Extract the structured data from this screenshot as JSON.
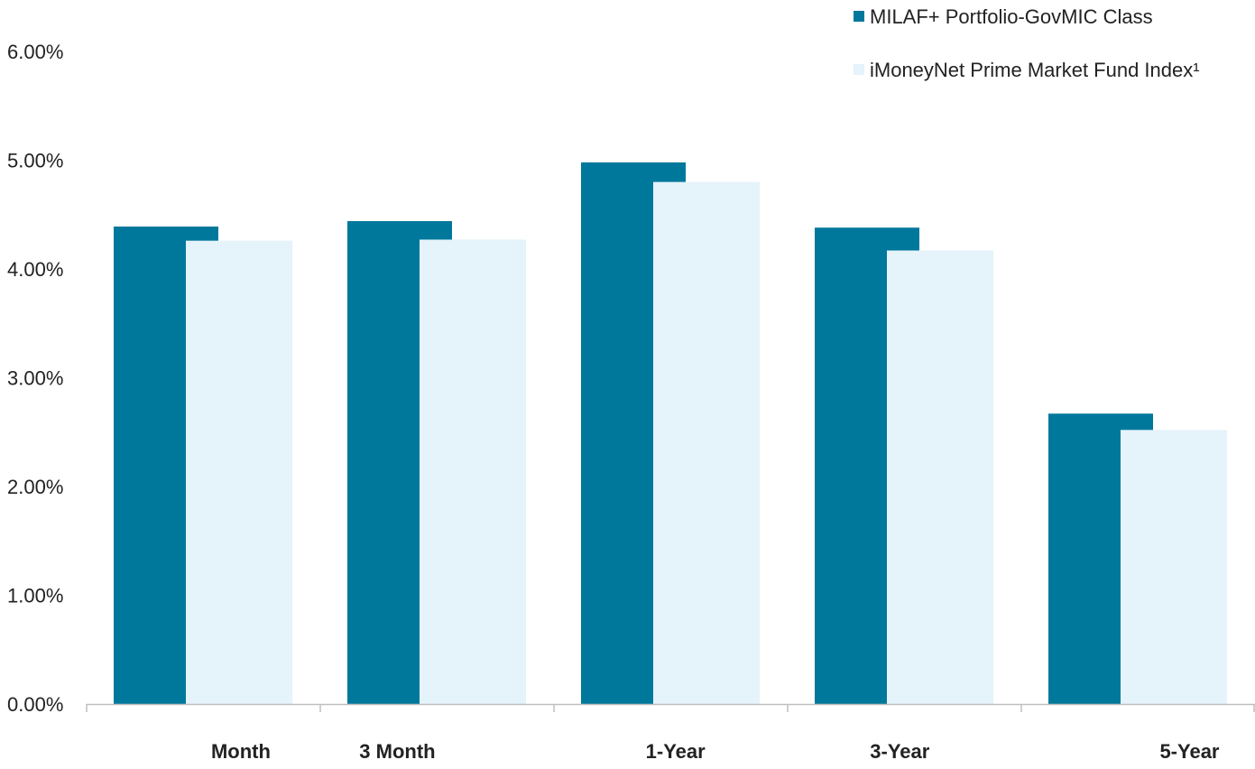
{
  "colors": {
    "series_primary": "#00789C",
    "series_secondary": "#E5F3FA",
    "axis": "#BFBFBF",
    "text": "#222222"
  },
  "chart_data": {
    "type": "bar",
    "categories": [
      "Month",
      "3 Month",
      "1-Year",
      "3-Year",
      "5-Year"
    ],
    "series": [
      {
        "name": "MILAF+ Portfolio-GovMIC Class",
        "color": "#00789C",
        "values": [
          4.39,
          4.44,
          4.98,
          4.38,
          2.67
        ]
      },
      {
        "name": "iMoneyNet Prime Market Fund Index¹",
        "color": "#E5F3FA",
        "values": [
          4.26,
          4.27,
          4.8,
          4.17,
          2.52
        ]
      }
    ],
    "y_tick_labels": [
      "0.00%",
      "1.00%",
      "2.00%",
      "3.00%",
      "4.00%",
      "5.00%",
      "6.00%"
    ],
    "ylim": [
      0,
      6
    ],
    "grid": false,
    "legend_position": "top-right",
    "title": "",
    "xlabel": "",
    "ylabel": ""
  }
}
